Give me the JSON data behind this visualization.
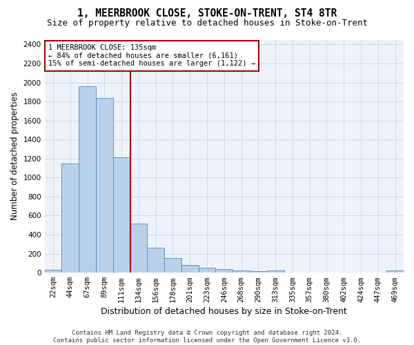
{
  "title": "1, MEERBROOK CLOSE, STOKE-ON-TRENT, ST4 8TR",
  "subtitle": "Size of property relative to detached houses in Stoke-on-Trent",
  "xlabel": "Distribution of detached houses by size in Stoke-on-Trent",
  "ylabel": "Number of detached properties",
  "footer_line1": "Contains HM Land Registry data © Crown copyright and database right 2024.",
  "footer_line2": "Contains public sector information licensed under the Open Government Licence v3.0.",
  "annotation_line1": "1 MEERBROOK CLOSE: 135sqm",
  "annotation_line2": "← 84% of detached houses are smaller (6,161)",
  "annotation_line3": "15% of semi-detached houses are larger (1,122) →",
  "bar_values": [
    30,
    1150,
    1960,
    1840,
    1210,
    520,
    265,
    155,
    80,
    50,
    40,
    20,
    15,
    20,
    5,
    5,
    5,
    5,
    5,
    5,
    20
  ],
  "bar_labels": [
    "22sqm",
    "44sqm",
    "67sqm",
    "89sqm",
    "111sqm",
    "134sqm",
    "156sqm",
    "178sqm",
    "201sqm",
    "223sqm",
    "246sqm",
    "268sqm",
    "290sqm",
    "313sqm",
    "335sqm",
    "357sqm",
    "380sqm",
    "402sqm",
    "424sqm",
    "447sqm",
    "469sqm"
  ],
  "bar_color": "#b8d0ea",
  "bar_edge_color": "#5588bb",
  "grid_color": "#ccd8ee",
  "background_color": "#eef2fa",
  "vline_color": "#aa0000",
  "annotation_box_color": "#aa0000",
  "ylim": [
    0,
    2450
  ],
  "yticks": [
    0,
    200,
    400,
    600,
    800,
    1000,
    1200,
    1400,
    1600,
    1800,
    2000,
    2200,
    2400
  ],
  "title_fontsize": 10.5,
  "subtitle_fontsize": 9,
  "xlabel_fontsize": 9,
  "ylabel_fontsize": 8.5,
  "tick_fontsize": 7.5,
  "annotation_fontsize": 7.5,
  "footer_fontsize": 6.5
}
